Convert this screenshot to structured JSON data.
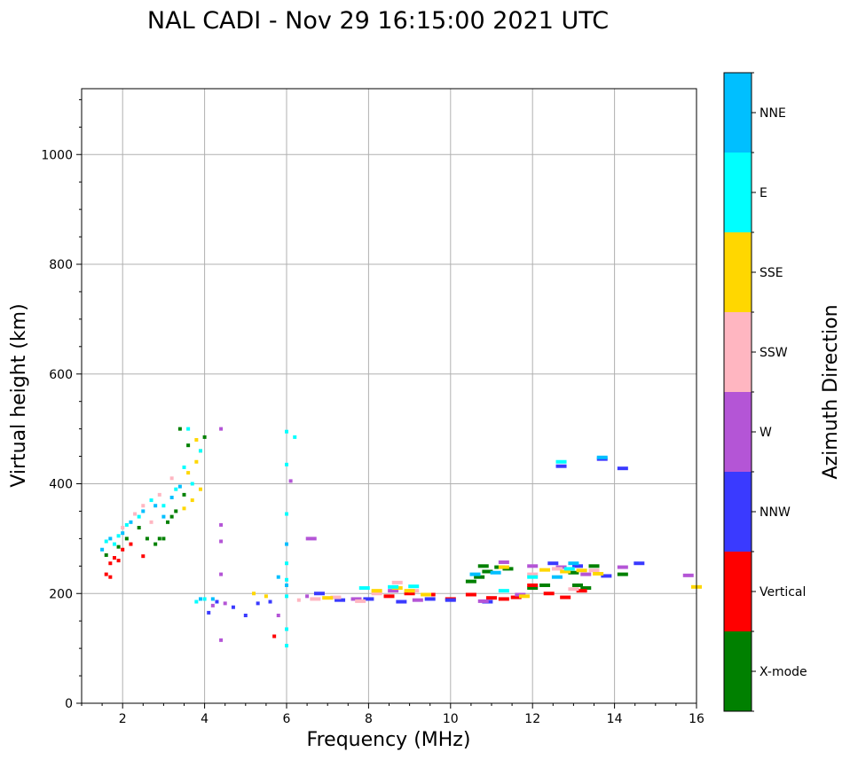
{
  "chart_data": {
    "type": "scatter",
    "title": "NAL CADI - Nov 29 16:15:00 2021 UTC",
    "xlabel": "Frequency (MHz)",
    "ylabel": "Virtual height (km)",
    "xlim": [
      1,
      16
    ],
    "ylim": [
      0,
      1120
    ],
    "xticks": [
      2,
      4,
      6,
      8,
      10,
      12,
      14,
      16
    ],
    "yticks": [
      0,
      200,
      400,
      600,
      800,
      1000
    ],
    "xtick_labels": [
      "2",
      "4",
      "6",
      "8",
      "10",
      "12",
      "14",
      "16"
    ],
    "ytick_labels": [
      "0",
      "200",
      "400",
      "600",
      "800",
      "1000"
    ],
    "grid": true,
    "colorbar": {
      "label": "Azimuth Direction",
      "categories": [
        "X-mode",
        "Vertical",
        "NNW",
        "W",
        "SSW",
        "SSE",
        "E",
        "NNE"
      ],
      "colors": [
        "#008000",
        "#ff0000",
        "#3a3aff",
        "#b455d6",
        "#ffb6c1",
        "#ffd700",
        "#00ffff",
        "#00bfff"
      ]
    },
    "series": [
      {
        "name": "X-mode",
        "points": [
          [
            1.6,
            270
          ],
          [
            1.9,
            285
          ],
          [
            2.1,
            300
          ],
          [
            2.4,
            320
          ],
          [
            2.6,
            300
          ],
          [
            2.8,
            290
          ],
          [
            3.0,
            300
          ],
          [
            3.2,
            340
          ],
          [
            3.5,
            380
          ],
          [
            3.6,
            470
          ],
          [
            3.4,
            500
          ],
          [
            2.9,
            300
          ],
          [
            3.1,
            330
          ],
          [
            3.3,
            350
          ],
          [
            4.0,
            485
          ],
          [
            10.7,
            230
          ],
          [
            10.8,
            250
          ],
          [
            11.2,
            248
          ],
          [
            11.4,
            245
          ],
          [
            12.3,
            215
          ],
          [
            13.0,
            238
          ],
          [
            13.1,
            215
          ],
          [
            13.5,
            250
          ],
          [
            14.2,
            235
          ],
          [
            10.5,
            222
          ],
          [
            10.9,
            240
          ],
          [
            12.0,
            210
          ],
          [
            13.3,
            210
          ]
        ]
      },
      {
        "name": "Vertical",
        "points": [
          [
            1.6,
            235
          ],
          [
            1.7,
            255
          ],
          [
            1.8,
            265
          ],
          [
            1.9,
            260
          ],
          [
            2.0,
            280
          ],
          [
            2.2,
            290
          ],
          [
            2.5,
            268
          ],
          [
            1.7,
            230
          ],
          [
            5.7,
            122
          ],
          [
            8.5,
            195
          ],
          [
            9.0,
            200
          ],
          [
            9.5,
            198
          ],
          [
            10.0,
            190
          ],
          [
            10.5,
            198
          ],
          [
            11.0,
            192
          ],
          [
            11.3,
            190
          ],
          [
            11.6,
            193
          ],
          [
            12.0,
            215
          ],
          [
            12.8,
            193
          ],
          [
            13.2,
            205
          ],
          [
            12.4,
            200
          ]
        ]
      },
      {
        "name": "NNW",
        "points": [
          [
            4.1,
            165
          ],
          [
            4.3,
            185
          ],
          [
            4.7,
            175
          ],
          [
            5.0,
            160
          ],
          [
            5.3,
            182
          ],
          [
            5.6,
            185
          ],
          [
            6.8,
            200
          ],
          [
            7.3,
            188
          ],
          [
            8.0,
            190
          ],
          [
            8.8,
            185
          ],
          [
            9.5,
            190
          ],
          [
            10.0,
            188
          ],
          [
            10.9,
            185
          ],
          [
            12.7,
            432
          ],
          [
            13.7,
            445
          ],
          [
            14.2,
            428
          ],
          [
            13.8,
            232
          ],
          [
            14.6,
            255
          ],
          [
            12.5,
            255
          ],
          [
            13.1,
            250
          ]
        ]
      },
      {
        "name": "W",
        "points": [
          [
            4.4,
            325
          ],
          [
            4.4,
            295
          ],
          [
            4.4,
            235
          ],
          [
            4.4,
            115
          ],
          [
            4.4,
            500
          ],
          [
            6.1,
            405
          ],
          [
            6.6,
            300
          ],
          [
            4.2,
            178
          ],
          [
            4.5,
            182
          ],
          [
            5.8,
            160
          ],
          [
            6.5,
            195
          ],
          [
            7.7,
            190
          ],
          [
            8.6,
            205
          ],
          [
            9.2,
            188
          ],
          [
            11.3,
            257
          ],
          [
            12.0,
            250
          ],
          [
            12.7,
            248
          ],
          [
            13.3,
            235
          ],
          [
            14.2,
            248
          ],
          [
            15.8,
            233
          ],
          [
            11.7,
            198
          ],
          [
            10.8,
            186
          ]
        ]
      },
      {
        "name": "SSW",
        "points": [
          [
            2.0,
            320
          ],
          [
            2.3,
            345
          ],
          [
            2.5,
            360
          ],
          [
            2.7,
            330
          ],
          [
            2.9,
            380
          ],
          [
            3.2,
            410
          ],
          [
            6.3,
            188
          ],
          [
            6.7,
            190
          ],
          [
            7.2,
            193
          ],
          [
            7.8,
            186
          ],
          [
            8.2,
            200
          ],
          [
            8.7,
            220
          ],
          [
            9.1,
            205
          ],
          [
            12.0,
            235
          ],
          [
            12.6,
            245
          ],
          [
            13.0,
            208
          ],
          [
            13.5,
            242
          ]
        ]
      },
      {
        "name": "SSE",
        "points": [
          [
            3.6,
            420
          ],
          [
            3.8,
            440
          ],
          [
            3.9,
            460
          ],
          [
            3.7,
            370
          ],
          [
            3.8,
            480
          ],
          [
            3.9,
            390
          ],
          [
            3.5,
            355
          ],
          [
            5.2,
            200
          ],
          [
            5.5,
            195
          ],
          [
            7.0,
            192
          ],
          [
            8.2,
            205
          ],
          [
            8.7,
            210
          ],
          [
            9.0,
            205
          ],
          [
            9.4,
            198
          ],
          [
            11.3,
            248
          ],
          [
            12.3,
            243
          ],
          [
            12.8,
            240
          ],
          [
            13.2,
            242
          ],
          [
            16.0,
            212
          ],
          [
            11.8,
            195
          ],
          [
            13.6,
            236
          ]
        ]
      },
      {
        "name": "E",
        "points": [
          [
            1.6,
            295
          ],
          [
            1.8,
            290
          ],
          [
            1.9,
            305
          ],
          [
            2.1,
            325
          ],
          [
            2.4,
            340
          ],
          [
            2.7,
            370
          ],
          [
            3.0,
            360
          ],
          [
            3.3,
            390
          ],
          [
            3.5,
            430
          ],
          [
            3.7,
            400
          ],
          [
            3.9,
            460
          ],
          [
            3.6,
            500
          ],
          [
            3.8,
            185
          ],
          [
            4.0,
            190
          ],
          [
            6.0,
            345
          ],
          [
            6.0,
            255
          ],
          [
            6.0,
            225
          ],
          [
            6.0,
            195
          ],
          [
            6.0,
            135
          ],
          [
            6.0,
            105
          ],
          [
            6.0,
            435
          ],
          [
            6.0,
            495
          ],
          [
            6.2,
            485
          ],
          [
            7.9,
            210
          ],
          [
            8.6,
            212
          ],
          [
            9.1,
            213
          ],
          [
            11.3,
            205
          ],
          [
            12.0,
            230
          ],
          [
            12.7,
            440
          ],
          [
            12.9,
            245
          ]
        ]
      },
      {
        "name": "NNE",
        "points": [
          [
            1.5,
            280
          ],
          [
            1.7,
            300
          ],
          [
            2.0,
            310
          ],
          [
            2.2,
            330
          ],
          [
            2.5,
            350
          ],
          [
            2.8,
            360
          ],
          [
            3.0,
            340
          ],
          [
            3.2,
            375
          ],
          [
            3.4,
            395
          ],
          [
            3.9,
            190
          ],
          [
            4.2,
            190
          ],
          [
            6.0,
            215
          ],
          [
            5.8,
            230
          ],
          [
            6.0,
            290
          ],
          [
            10.6,
            235
          ],
          [
            11.1,
            238
          ],
          [
            12.6,
            230
          ],
          [
            13.7,
            448
          ],
          [
            13.0,
            255
          ]
        ]
      }
    ]
  }
}
